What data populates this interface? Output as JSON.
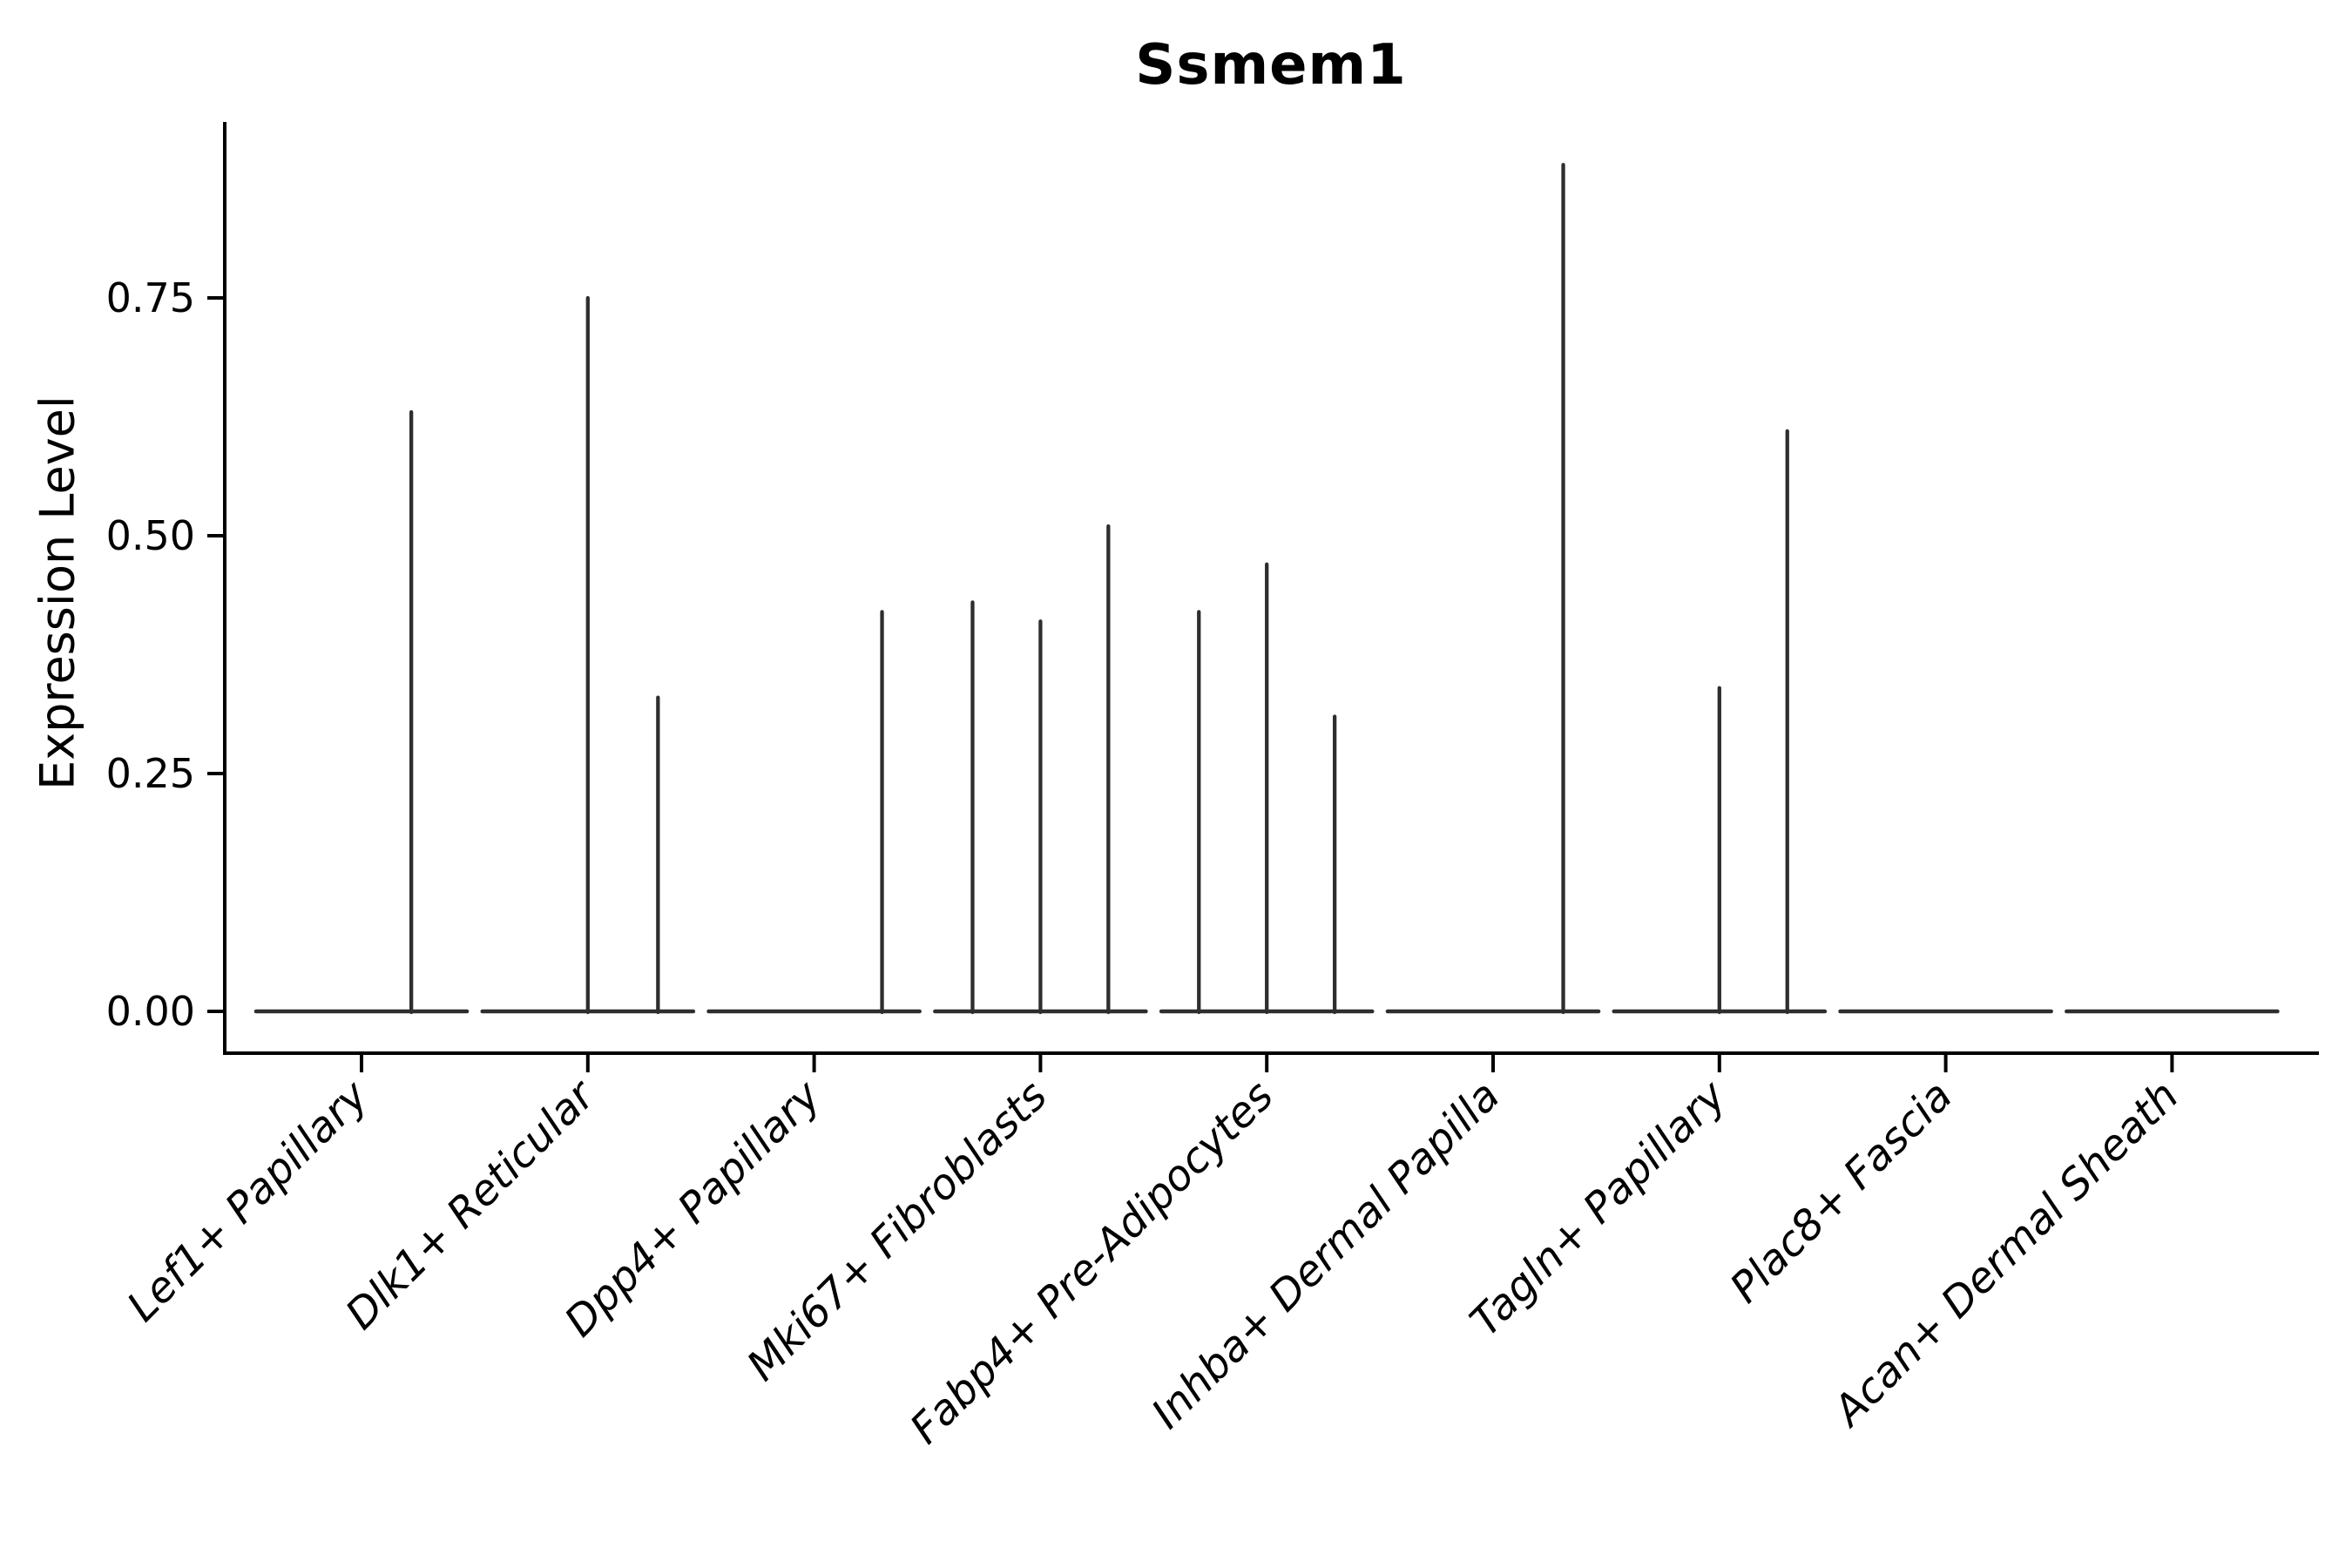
{
  "figure": {
    "title": "Ssmem1",
    "ylabel": "Expression Level"
  },
  "chart_data": {
    "type": "violin",
    "title": "Ssmem1",
    "xlabel": "",
    "ylabel": "Expression Level",
    "categories": [
      "Lef1+ Papillary",
      "Dlk1+ Reticular",
      "Dpp4+ Papillary",
      "Mki67+ Fibroblasts",
      "Fabp4+ Pre-Adipocytes",
      "Inhba+ Dermal Papilla",
      "Tagln+ Papillary",
      "Plac8+ Fascia",
      "Acan+ Dermal Sheath"
    ],
    "description": "Collapsed violins: each category has a flat density body at expression 0 plus thin vertical spikes marking sparse expressing cells (spike offset is fraction of category spacing from the category center; value is max expression level reached).",
    "series": [
      {
        "category": "Lef1+ Papillary",
        "zero_body": true,
        "spikes": [
          {
            "offset": 0.22,
            "value": 0.63
          }
        ]
      },
      {
        "category": "Dlk1+ Reticular",
        "zero_body": true,
        "spikes": [
          {
            "offset": 0.0,
            "value": 0.75
          },
          {
            "offset": 0.31,
            "value": 0.33
          }
        ]
      },
      {
        "category": "Dpp4+ Papillary",
        "zero_body": true,
        "spikes": [
          {
            "offset": 0.3,
            "value": 0.42
          }
        ]
      },
      {
        "category": "Mki67+ Fibroblasts",
        "zero_body": true,
        "spikes": [
          {
            "offset": -0.3,
            "value": 0.43
          },
          {
            "offset": 0.0,
            "value": 0.41
          },
          {
            "offset": 0.3,
            "value": 0.51
          }
        ]
      },
      {
        "category": "Fabp4+ Pre-Adipocytes",
        "zero_body": true,
        "spikes": [
          {
            "offset": -0.3,
            "value": 0.42
          },
          {
            "offset": 0.0,
            "value": 0.47
          },
          {
            "offset": 0.3,
            "value": 0.31
          }
        ]
      },
      {
        "category": "Inhba+ Dermal Papilla",
        "zero_body": true,
        "spikes": [
          {
            "offset": 0.31,
            "value": 0.89
          }
        ]
      },
      {
        "category": "Tagln+ Papillary",
        "zero_body": true,
        "spikes": [
          {
            "offset": 0.0,
            "value": 0.34
          },
          {
            "offset": 0.3,
            "value": 0.61
          }
        ]
      },
      {
        "category": "Plac8+ Fascia",
        "zero_body": true,
        "spikes": []
      },
      {
        "category": "Acan+ Dermal Sheath",
        "zero_body": true,
        "spikes": []
      }
    ],
    "yticks": {
      "values": [
        0.0,
        0.25,
        0.5,
        0.75
      ],
      "labels": [
        "0.00",
        "0.25",
        "0.50",
        "0.75"
      ]
    },
    "ylim": [
      -0.044,
      0.935
    ],
    "grid": false,
    "legend": null,
    "layout_hints": {
      "xtick_rotation_deg": 45,
      "xtick_style": "italic",
      "spines": [
        "left",
        "bottom"
      ]
    },
    "colors": {
      "violin_stroke": "#2e2e2e",
      "axis": "#000000",
      "text": "#000000",
      "background": "#ffffff"
    }
  }
}
